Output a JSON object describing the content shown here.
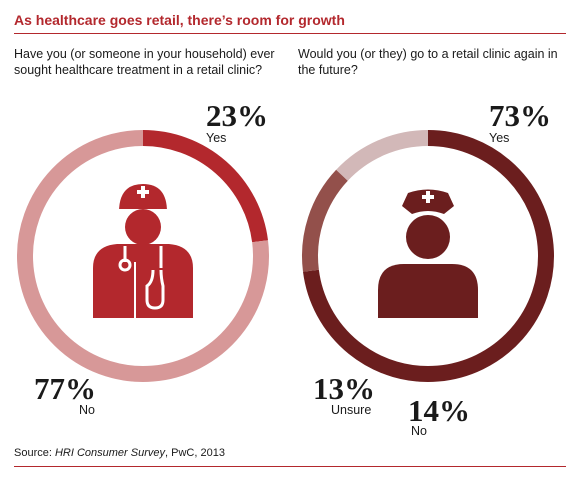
{
  "title": "As healthcare goes retail, there’s room for growth",
  "colors": {
    "title_red": "#b3282d",
    "left_yes": "#b3282d",
    "left_no": "#d79898",
    "right_yes": "#6b1e1e",
    "right_unsure": "#d2b8b8",
    "right_no": "#93504b"
  },
  "icons": [
    "doctor-icon",
    "nurse-icon"
  ],
  "chart_data": [
    {
      "type": "pie",
      "style": "donut",
      "question": "Have you (or someone in your household) ever sought healthcare treatment in a retail clinic?",
      "slices": [
        {
          "label": "Yes",
          "value": 23,
          "pct_label": "23%"
        },
        {
          "label": "No",
          "value": 77,
          "pct_label": "77%"
        }
      ]
    },
    {
      "type": "pie",
      "style": "donut",
      "question": "Would you (or they) go to a retail clinic again in the future?",
      "slices": [
        {
          "label": "Yes",
          "value": 73,
          "pct_label": "73%"
        },
        {
          "label": "No",
          "value": 14,
          "pct_label": "14%"
        },
        {
          "label": "Unsure",
          "value": 13,
          "pct_label": "13%"
        }
      ]
    }
  ],
  "source": {
    "prefix": "Source: ",
    "survey": "HRI Consumer Survey",
    "suffix": ", PwC, 2013"
  }
}
